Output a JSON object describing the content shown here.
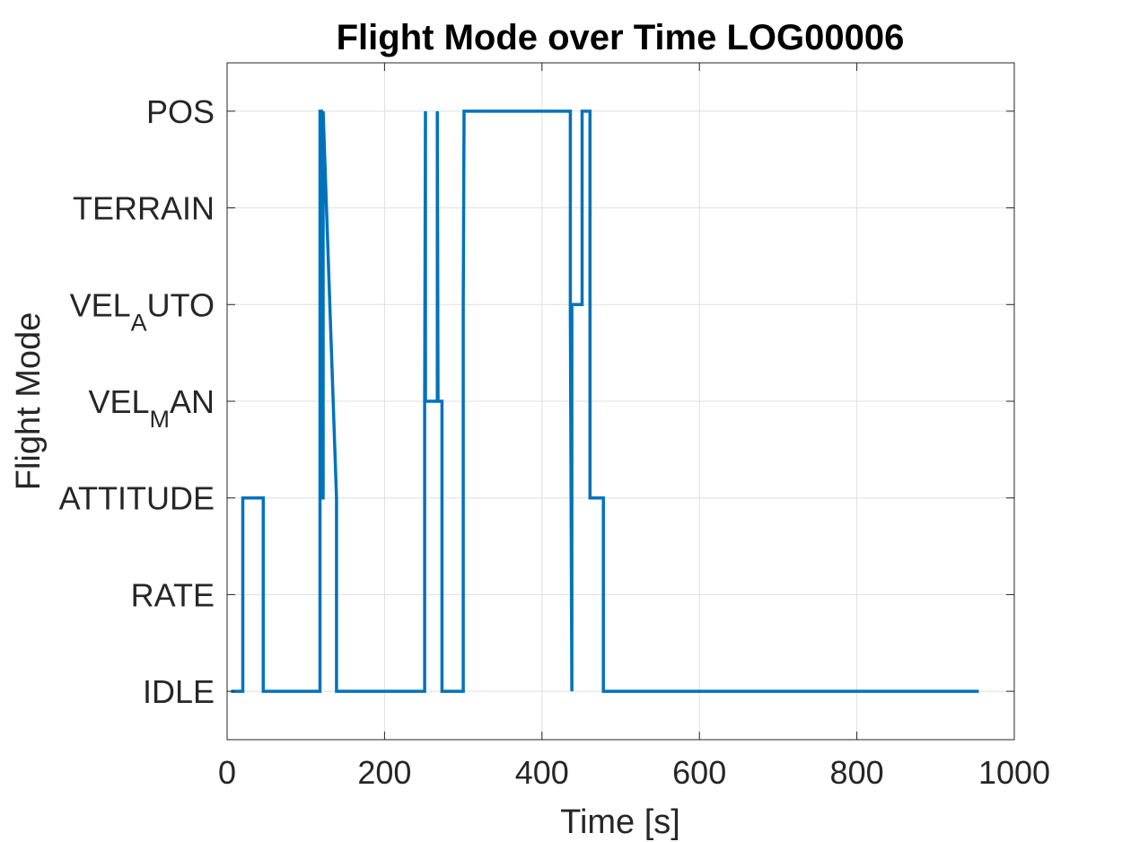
{
  "chart_data": {
    "type": "line",
    "title": "Flight Mode over Time LOG00006",
    "xlabel": "Time [s]",
    "ylabel": "Flight Mode",
    "xlim": [
      0,
      1000
    ],
    "ylim": [
      -0.5,
      6.5
    ],
    "x_ticks": [
      0,
      200,
      400,
      600,
      800,
      1000
    ],
    "x_tick_labels": [
      "0",
      "200",
      "400",
      "600",
      "800",
      "1000"
    ],
    "y_ticks": [
      {
        "value": 0,
        "main": "IDLE",
        "sub": "",
        "tail": ""
      },
      {
        "value": 1,
        "main": "RATE",
        "sub": "",
        "tail": ""
      },
      {
        "value": 2,
        "main": "ATTITUDE",
        "sub": "",
        "tail": ""
      },
      {
        "value": 3,
        "main": "VEL",
        "sub": "M",
        "tail": "AN"
      },
      {
        "value": 4,
        "main": "VEL",
        "sub": "A",
        "tail": "UTO"
      },
      {
        "value": 5,
        "main": "TERRAIN",
        "sub": "",
        "tail": ""
      },
      {
        "value": 6,
        "main": "POS",
        "sub": "",
        "tail": ""
      }
    ],
    "grid": true,
    "series": [
      {
        "color": "#0072BD",
        "x": [
          5,
          20,
          20,
          46,
          46,
          118,
          118,
          120,
          120,
          122,
          122,
          139,
          139,
          251,
          251,
          252,
          252,
          267,
          267,
          268,
          268,
          271,
          271,
          273,
          273,
          300,
          300,
          301,
          301,
          436,
          436,
          438,
          438,
          440,
          440,
          451,
          451,
          453,
          453,
          461,
          461,
          463,
          463,
          478,
          478,
          955
        ],
        "y": [
          0,
          0,
          2,
          2,
          0,
          0,
          6,
          6,
          2,
          2,
          6,
          2,
          0,
          0,
          3,
          6,
          3,
          3,
          6,
          3,
          3,
          3,
          3,
          3,
          0,
          0,
          4,
          6,
          6,
          6,
          4,
          0,
          4,
          4,
          4,
          4,
          6,
          6,
          6,
          6,
          2,
          2,
          2,
          2,
          0,
          0
        ]
      }
    ]
  }
}
